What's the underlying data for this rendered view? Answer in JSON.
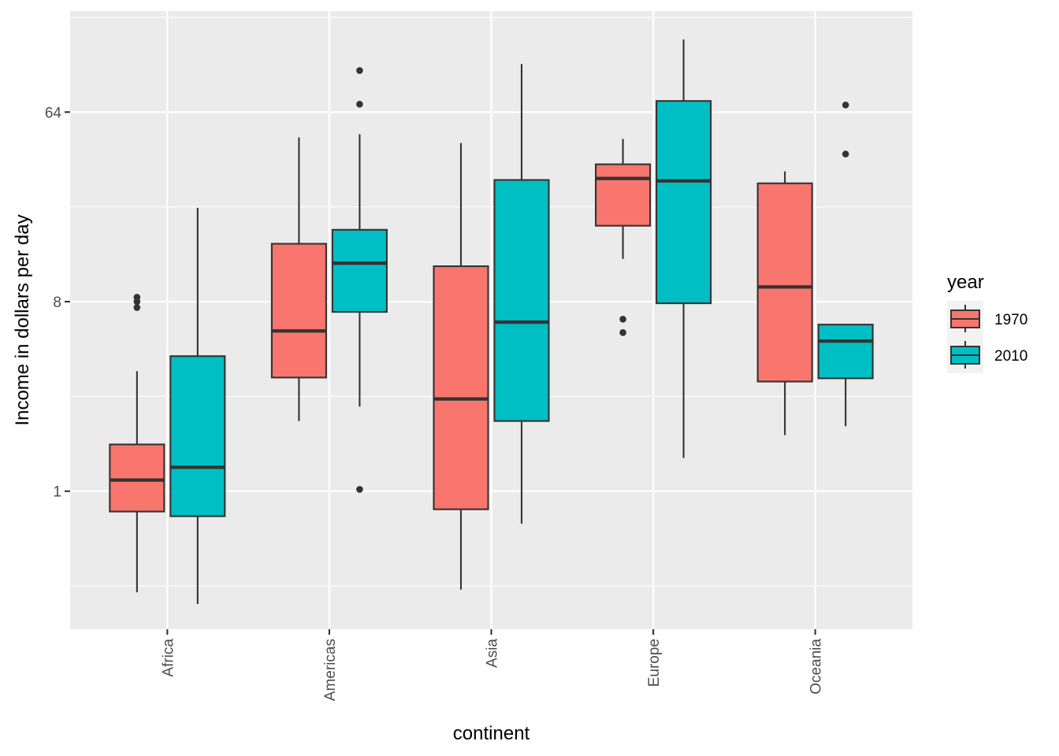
{
  "chart_data": {
    "type": "boxplot",
    "title": "",
    "xlabel": "continent",
    "ylabel": "Income in dollars per day",
    "y_scale": "log2",
    "ylim": [
      0.22,
      194
    ],
    "y_ticks": [
      1,
      8,
      64
    ],
    "y_tick_labels": [
      "1",
      "8",
      "64"
    ],
    "grid": true,
    "categories": [
      "Africa",
      "Americas",
      "Asia",
      "Europe",
      "Oceania"
    ],
    "legend": {
      "title": "year",
      "position": "right",
      "entries": [
        {
          "label": "1970",
          "color": "#F8766D"
        },
        {
          "label": "2010",
          "color": "#00BFC4"
        }
      ]
    },
    "series": [
      {
        "name": "1970",
        "color": "#F8766D",
        "boxes": [
          {
            "category": "Africa",
            "whisker_low": 0.33,
            "q1": 0.8,
            "median": 1.13,
            "q3": 1.67,
            "whisker_high": 3.73,
            "outliers": [
              7.5,
              8.0,
              8.4
            ]
          },
          {
            "category": "Americas",
            "whisker_low": 2.16,
            "q1": 3.48,
            "median": 5.8,
            "q3": 15.1,
            "whisker_high": 48.5,
            "outliers": []
          },
          {
            "category": "Asia",
            "whisker_low": 0.34,
            "q1": 0.82,
            "median": 2.75,
            "q3": 11.8,
            "whisker_high": 45.6,
            "outliers": []
          },
          {
            "category": "Europe",
            "whisker_low": 12.8,
            "q1": 18.4,
            "median": 30.9,
            "q3": 36.1,
            "whisker_high": 47.7,
            "outliers": [
              5.7,
              6.6
            ]
          },
          {
            "category": "Oceania",
            "whisker_low": 1.85,
            "q1": 3.33,
            "median": 9.4,
            "q3": 29.3,
            "whisker_high": 33.4,
            "outliers": []
          }
        ]
      },
      {
        "name": "2010",
        "color": "#00BFC4",
        "boxes": [
          {
            "category": "Africa",
            "whisker_low": 0.29,
            "q1": 0.76,
            "median": 1.3,
            "q3": 4.4,
            "whisker_high": 22.4,
            "outliers": []
          },
          {
            "category": "Americas",
            "whisker_low": 2.53,
            "q1": 7.15,
            "median": 12.2,
            "q3": 17.6,
            "whisker_high": 50.2,
            "outliers": [
              1.02,
              69.8,
              101
            ]
          },
          {
            "category": "Asia",
            "whisker_low": 0.7,
            "q1": 2.16,
            "median": 6.39,
            "q3": 30.4,
            "whisker_high": 108.5,
            "outliers": []
          },
          {
            "category": "Europe",
            "whisker_low": 1.44,
            "q1": 7.86,
            "median": 30.1,
            "q3": 72.3,
            "whisker_high": 142,
            "outliers": []
          },
          {
            "category": "Oceania",
            "whisker_low": 2.04,
            "q1": 3.45,
            "median": 5.19,
            "q3": 6.22,
            "whisker_high": 6.22,
            "outliers": [
              40.4,
              69.2
            ]
          }
        ]
      }
    ],
    "style": {
      "panel_background": "#EBEBEB",
      "grid_color": "#FFFFFF",
      "box_outline": "#333333"
    }
  }
}
